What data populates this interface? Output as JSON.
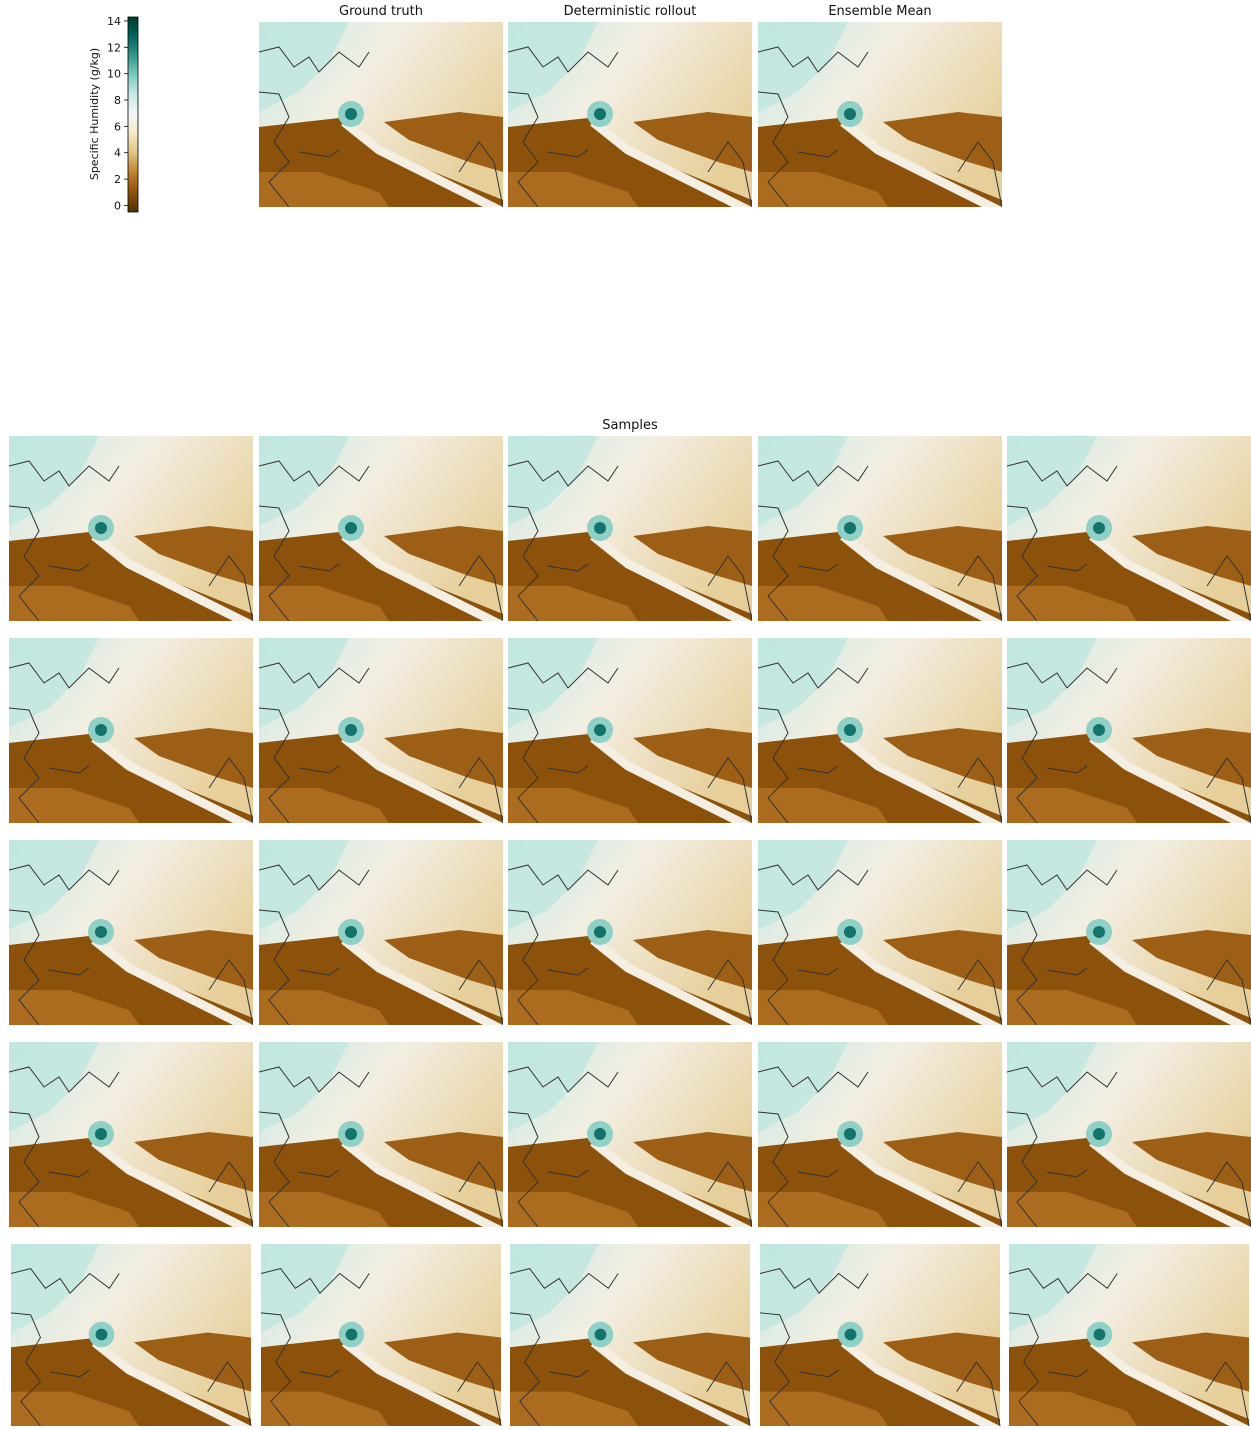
{
  "chart_data": {
    "type": "heatmap",
    "titles": [
      "Ground truth",
      "Deterministic rollout",
      "Ensemble Mean"
    ],
    "subtitle": "Samples",
    "colorbar_label": "Specific Humidity (g/kg)",
    "ylim": [
      -0.5,
      14.3
    ],
    "yticks": [
      0,
      2,
      4,
      6,
      8,
      10,
      12,
      14
    ]
  }
}
